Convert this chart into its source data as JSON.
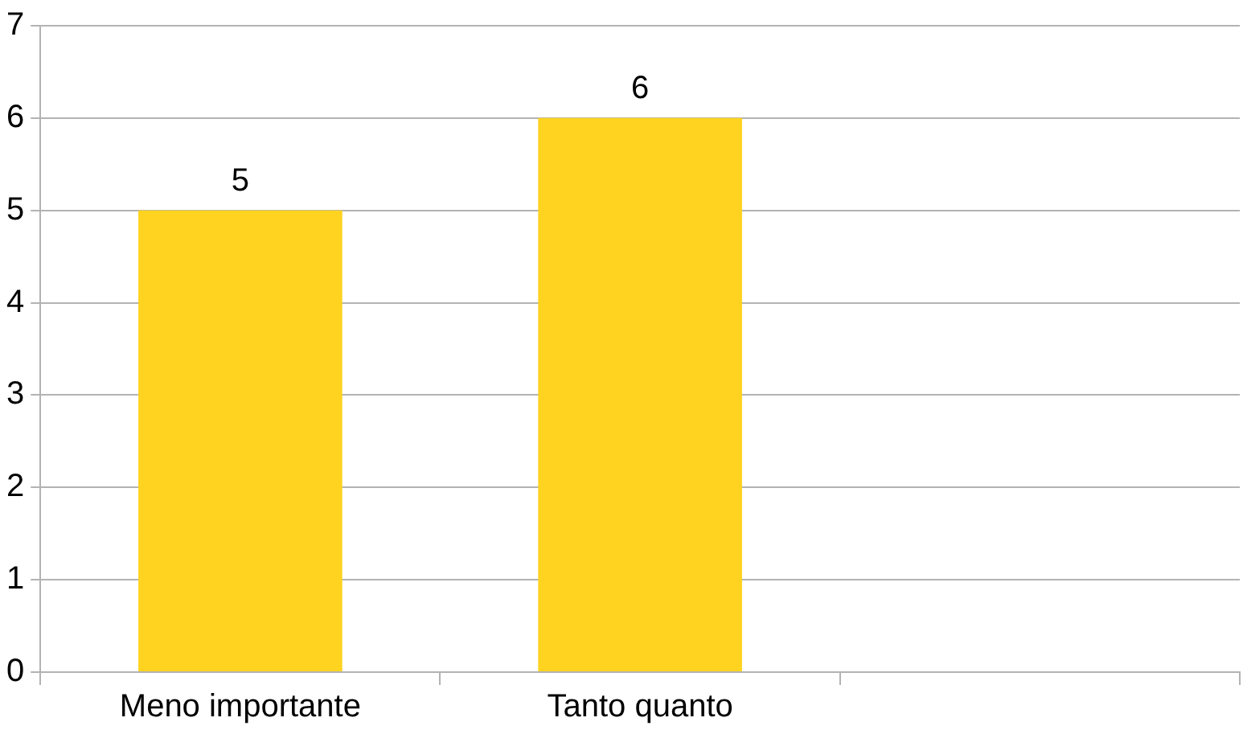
{
  "chart_data": {
    "type": "bar",
    "categories": [
      "Meno importante",
      "Tanto quanto",
      null
    ],
    "values": [
      5,
      6,
      null
    ],
    "color": "#ffd320",
    "ylim": [
      0,
      7
    ],
    "yticks": [
      0,
      1,
      2,
      3,
      4,
      5,
      6,
      7
    ],
    "grid": "y",
    "data_labels": true
  }
}
